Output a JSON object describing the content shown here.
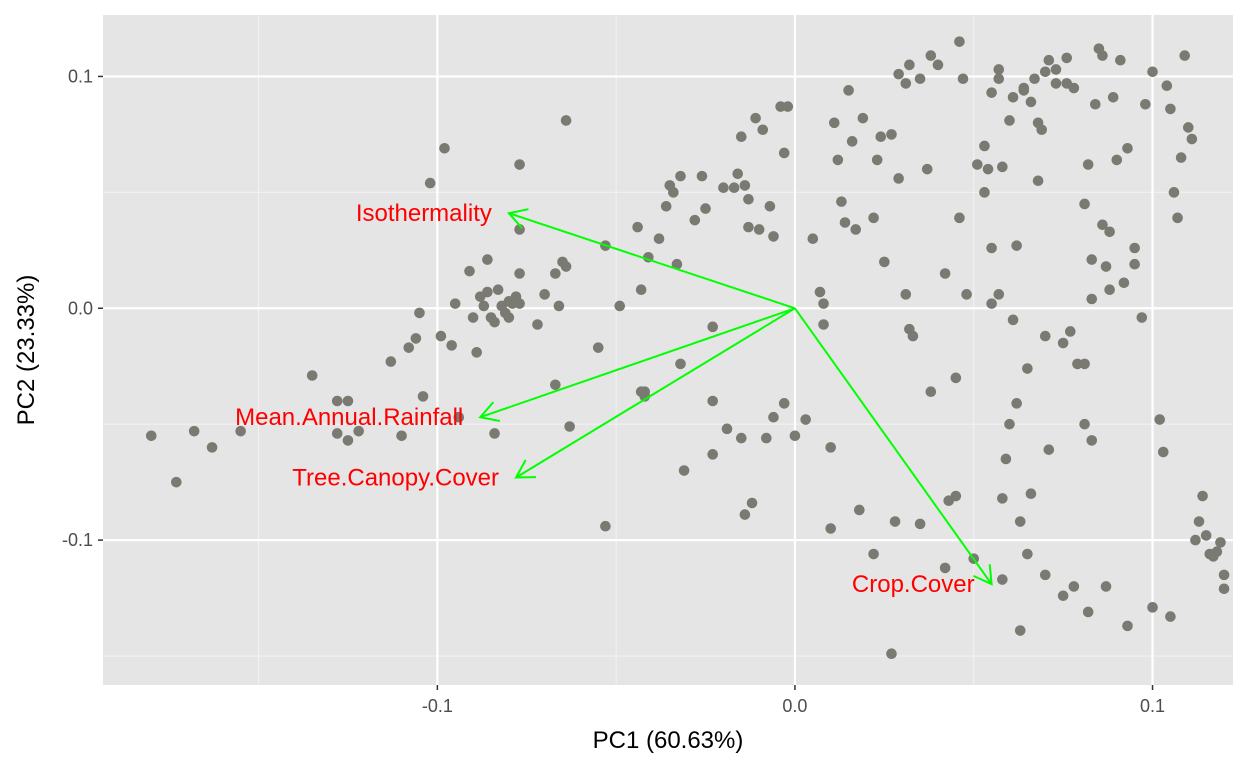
{
  "chart_data": {
    "type": "scatter",
    "title": "",
    "xlabel": "PC1 (60.63%)",
    "ylabel": "PC2 (23.33%)",
    "xlim": [
      -0.1935,
      0.1225
    ],
    "ylim": [
      -0.1625,
      0.1265
    ],
    "x_ticks": [
      -0.1,
      0.0,
      0.1
    ],
    "x_tick_labels": [
      "-0.1",
      "0.0",
      "0.1"
    ],
    "y_ticks": [
      -0.1,
      0.0,
      0.1
    ],
    "y_tick_labels": [
      "-0.1",
      "0.0",
      "0.1"
    ],
    "grid": true,
    "background": "#e5e5e5",
    "point_color": "#7a7a72",
    "arrow_color": "#00ff00",
    "label_color": "#ff0000",
    "points": [
      [
        -0.18,
        -0.055
      ],
      [
        -0.173,
        -0.075
      ],
      [
        -0.168,
        -0.053
      ],
      [
        -0.163,
        -0.06
      ],
      [
        -0.155,
        -0.053
      ],
      [
        -0.135,
        -0.029
      ],
      [
        -0.128,
        -0.04
      ],
      [
        -0.128,
        -0.054
      ],
      [
        -0.125,
        -0.04
      ],
      [
        -0.125,
        -0.057
      ],
      [
        -0.122,
        -0.053
      ],
      [
        -0.113,
        -0.023
      ],
      [
        -0.11,
        -0.055
      ],
      [
        -0.108,
        -0.017
      ],
      [
        -0.106,
        -0.013
      ],
      [
        -0.105,
        -0.002
      ],
      [
        -0.104,
        -0.038
      ],
      [
        -0.102,
        0.054
      ],
      [
        -0.099,
        -0.012
      ],
      [
        -0.098,
        0.069
      ],
      [
        -0.096,
        -0.016
      ],
      [
        -0.095,
        0.002
      ],
      [
        -0.094,
        -0.047
      ],
      [
        -0.091,
        0.016
      ],
      [
        -0.09,
        -0.004
      ],
      [
        -0.089,
        -0.019
      ],
      [
        -0.088,
        0.005
      ],
      [
        -0.087,
        0.001
      ],
      [
        -0.086,
        0.021
      ],
      [
        -0.086,
        0.007
      ],
      [
        -0.085,
        -0.004
      ],
      [
        -0.084,
        -0.006
      ],
      [
        -0.084,
        -0.054
      ],
      [
        -0.083,
        0.008
      ],
      [
        -0.082,
        0.001
      ],
      [
        -0.081,
        -0.002
      ],
      [
        -0.08,
        0.003
      ],
      [
        -0.08,
        -0.004
      ],
      [
        -0.079,
        0.002
      ],
      [
        -0.078,
        0.005
      ],
      [
        -0.077,
        0.015
      ],
      [
        -0.077,
        0.002
      ],
      [
        -0.077,
        0.062
      ],
      [
        -0.077,
        0.034
      ],
      [
        -0.072,
        -0.007
      ],
      [
        -0.07,
        0.006
      ],
      [
        -0.067,
        0.015
      ],
      [
        -0.067,
        -0.033
      ],
      [
        -0.066,
        0.001
      ],
      [
        -0.065,
        0.02
      ],
      [
        -0.064,
        0.081
      ],
      [
        -0.064,
        0.018
      ],
      [
        -0.063,
        -0.051
      ],
      [
        -0.055,
        -0.017
      ],
      [
        -0.053,
        0.027
      ],
      [
        -0.053,
        -0.094
      ],
      [
        -0.049,
        0.001
      ],
      [
        -0.044,
        0.035
      ],
      [
        -0.043,
        0.008
      ],
      [
        -0.043,
        -0.036
      ],
      [
        -0.042,
        -0.036
      ],
      [
        -0.042,
        -0.038
      ],
      [
        -0.041,
        0.022
      ],
      [
        -0.038,
        0.03
      ],
      [
        -0.036,
        0.044
      ],
      [
        -0.035,
        0.053
      ],
      [
        -0.034,
        0.05
      ],
      [
        -0.032,
        0.057
      ],
      [
        -0.033,
        0.019
      ],
      [
        -0.032,
        -0.024
      ],
      [
        -0.031,
        -0.07
      ],
      [
        -0.028,
        0.038
      ],
      [
        -0.026,
        0.057
      ],
      [
        -0.025,
        0.043
      ],
      [
        -0.023,
        -0.008
      ],
      [
        -0.023,
        -0.04
      ],
      [
        -0.023,
        -0.063
      ],
      [
        -0.02,
        0.052
      ],
      [
        -0.019,
        -0.052
      ],
      [
        -0.017,
        0.052
      ],
      [
        -0.016,
        0.058
      ],
      [
        -0.015,
        0.074
      ],
      [
        -0.014,
        0.053
      ],
      [
        -0.015,
        -0.056
      ],
      [
        -0.014,
        -0.089
      ],
      [
        -0.013,
        0.035
      ],
      [
        -0.012,
        -0.084
      ],
      [
        -0.013,
        0.047
      ],
      [
        -0.011,
        0.082
      ],
      [
        -0.01,
        0.034
      ],
      [
        -0.009,
        0.077
      ],
      [
        -0.007,
        0.044
      ],
      [
        -0.006,
        0.031
      ],
      [
        -0.004,
        0.087
      ],
      [
        -0.003,
        0.067
      ],
      [
        -0.003,
        -0.041
      ],
      [
        -0.002,
        0.087
      ],
      [
        0.0,
        -0.055
      ],
      [
        0.003,
        -0.048
      ],
      [
        0.005,
        0.03
      ],
      [
        0.007,
        0.007
      ],
      [
        0.008,
        0.002
      ],
      [
        0.008,
        -0.007
      ],
      [
        0.01,
        -0.06
      ],
      [
        0.011,
        0.08
      ],
      [
        0.012,
        0.064
      ],
      [
        0.013,
        0.046
      ],
      [
        0.014,
        0.037
      ],
      [
        0.015,
        0.094
      ],
      [
        0.016,
        0.072
      ],
      [
        0.017,
        0.034
      ],
      [
        0.019,
        0.082
      ],
      [
        0.022,
        -0.106
      ],
      [
        0.022,
        0.039
      ],
      [
        0.023,
        0.064
      ],
      [
        0.024,
        0.074
      ],
      [
        0.025,
        0.02
      ],
      [
        0.027,
        0.075
      ],
      [
        0.028,
        -0.092
      ],
      [
        0.029,
        0.056
      ],
      [
        0.031,
        0.006
      ],
      [
        0.032,
        -0.009
      ],
      [
        0.033,
        -0.012
      ],
      [
        0.035,
        -0.093
      ],
      [
        0.037,
        0.06
      ],
      [
        0.038,
        0.109
      ],
      [
        0.04,
        0.105
      ],
      [
        0.042,
        0.015
      ],
      [
        0.042,
        -0.112
      ],
      [
        0.043,
        -0.083
      ],
      [
        0.045,
        -0.081
      ],
      [
        0.046,
        0.115
      ],
      [
        0.046,
        0.039
      ],
      [
        0.048,
        0.006
      ],
      [
        0.051,
        0.062
      ],
      [
        0.053,
        0.07
      ],
      [
        0.054,
        0.06
      ],
      [
        0.055,
        0.093
      ],
      [
        0.055,
        0.026
      ],
      [
        0.055,
        0.002
      ],
      [
        0.057,
        0.006
      ],
      [
        0.058,
        0.061
      ],
      [
        0.058,
        -0.082
      ],
      [
        0.059,
        -0.065
      ],
      [
        0.06,
        -0.05
      ],
      [
        0.062,
        0.027
      ],
      [
        0.062,
        -0.041
      ],
      [
        0.063,
        -0.092
      ],
      [
        0.066,
        -0.08
      ],
      [
        0.067,
        0.099
      ],
      [
        0.068,
        0.055
      ],
      [
        0.07,
        0.102
      ],
      [
        0.071,
        -0.061
      ],
      [
        0.071,
        0.107
      ],
      [
        0.073,
        0.103
      ],
      [
        0.073,
        0.097
      ],
      [
        0.075,
        -0.015
      ],
      [
        0.076,
        0.108
      ],
      [
        0.076,
        0.097
      ],
      [
        0.077,
        -0.01
      ],
      [
        0.078,
        0.095
      ],
      [
        0.081,
        -0.05
      ],
      [
        0.081,
        0.045
      ],
      [
        0.082,
        0.062
      ],
      [
        0.083,
        -0.057
      ],
      [
        0.084,
        0.088
      ],
      [
        0.085,
        0.112
      ],
      [
        0.086,
        0.109
      ],
      [
        0.087,
        0.018
      ],
      [
        0.088,
        0.008
      ],
      [
        0.089,
        0.091
      ],
      [
        0.09,
        0.064
      ],
      [
        0.091,
        0.107
      ],
      [
        0.092,
        0.011
      ],
      [
        0.093,
        0.069
      ],
      [
        0.095,
        0.026
      ],
      [
        0.095,
        0.019
      ],
      [
        0.097,
        -0.004
      ],
      [
        0.098,
        0.088
      ],
      [
        0.1,
        0.102
      ],
      [
        0.102,
        -0.048
      ],
      [
        0.103,
        -0.062
      ],
      [
        0.104,
        0.096
      ],
      [
        0.105,
        0.086
      ],
      [
        0.106,
        0.05
      ],
      [
        0.107,
        0.039
      ],
      [
        0.108,
        0.065
      ],
      [
        0.109,
        0.109
      ],
      [
        0.11,
        0.078
      ],
      [
        0.111,
        0.073
      ],
      [
        0.112,
        -0.1
      ],
      [
        0.113,
        -0.092
      ],
      [
        0.114,
        -0.081
      ],
      [
        0.115,
        -0.098
      ],
      [
        0.116,
        -0.106
      ],
      [
        0.117,
        -0.107
      ],
      [
        0.118,
        -0.105
      ],
      [
        0.119,
        -0.101
      ],
      [
        0.12,
        -0.115
      ],
      [
        0.12,
        -0.121
      ],
      [
        0.045,
        -0.03
      ],
      [
        0.05,
        -0.108
      ],
      [
        0.058,
        -0.117
      ],
      [
        0.065,
        -0.106
      ],
      [
        0.07,
        -0.115
      ],
      [
        0.075,
        -0.124
      ],
      [
        0.078,
        -0.12
      ],
      [
        0.082,
        -0.131
      ],
      [
        0.087,
        -0.12
      ],
      [
        0.093,
        -0.137
      ],
      [
        0.1,
        -0.129
      ],
      [
        0.105,
        -0.133
      ],
      [
        0.027,
        -0.149
      ],
      [
        0.063,
        -0.139
      ],
      [
        0.01,
        -0.095
      ],
      [
        0.018,
        -0.087
      ],
      [
        -0.008,
        -0.056
      ],
      [
        -0.006,
        -0.047
      ],
      [
        0.038,
        -0.036
      ],
      [
        0.065,
        -0.026
      ],
      [
        0.07,
        -0.012
      ],
      [
        0.079,
        -0.024
      ],
      [
        0.081,
        -0.024
      ],
      [
        0.083,
        0.021
      ],
      [
        0.083,
        0.004
      ],
      [
        0.086,
        0.036
      ],
      [
        0.088,
        0.033
      ],
      [
        0.061,
        -0.005
      ],
      [
        0.053,
        0.05
      ],
      [
        0.031,
        0.097
      ],
      [
        0.032,
        0.105
      ],
      [
        0.029,
        0.101
      ],
      [
        0.035,
        0.099
      ],
      [
        0.047,
        0.099
      ],
      [
        0.057,
        0.103
      ],
      [
        0.057,
        0.099
      ],
      [
        0.064,
        0.095
      ],
      [
        0.066,
        0.089
      ],
      [
        0.064,
        0.094
      ],
      [
        0.061,
        0.091
      ],
      [
        0.068,
        0.08
      ],
      [
        0.06,
        0.081
      ],
      [
        0.069,
        0.077
      ]
    ],
    "arrows": [
      {
        "label": "Isothermality",
        "x": -0.08,
        "y": 0.041
      },
      {
        "label": "Mean.Annual.Rainfall",
        "x": -0.088,
        "y": -0.047
      },
      {
        "label": "Tree.Canopy.Cover",
        "x": -0.078,
        "y": -0.073
      },
      {
        "label": "Crop.Cover",
        "x": 0.055,
        "y": -0.119
      }
    ]
  }
}
